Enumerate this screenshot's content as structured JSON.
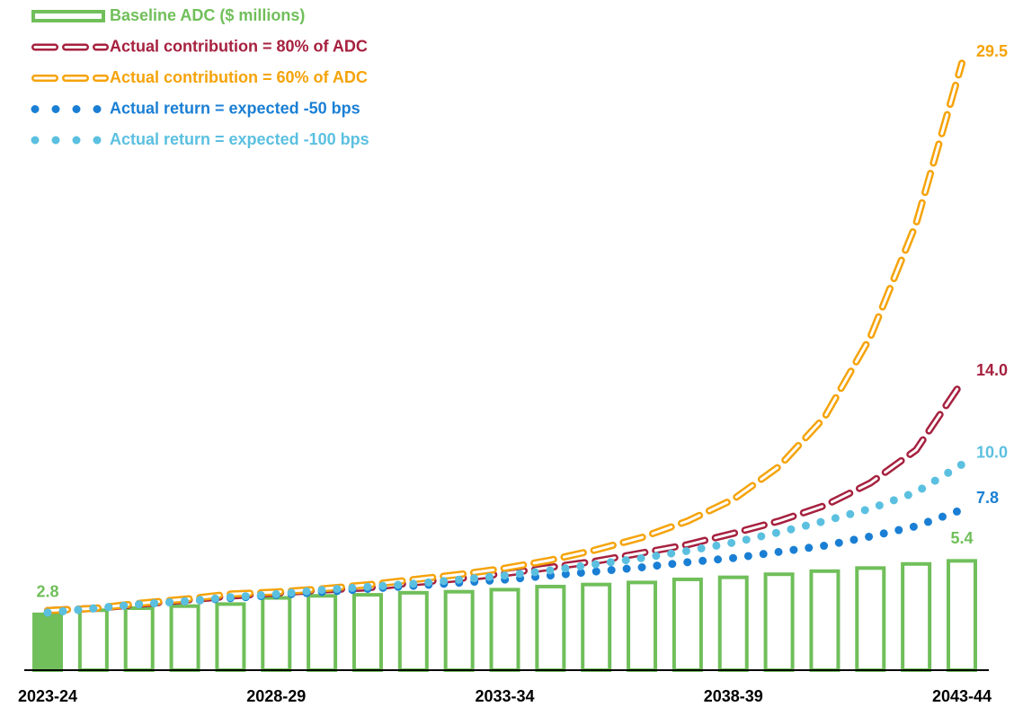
{
  "chart_data": {
    "type": "bar-line",
    "categories": [
      "2023-24",
      null,
      null,
      null,
      null,
      "2028-29",
      null,
      null,
      null,
      null,
      "2033-34",
      null,
      null,
      null,
      null,
      "2038-39",
      null,
      null,
      null,
      null,
      "2043-44"
    ],
    "ylim": [
      0,
      31
    ],
    "legend": "top-left",
    "series": [
      {
        "name": "Baseline ADC ($ millions)",
        "type": "bar",
        "color": "#70bf5a",
        "values": [
          2.8,
          3.0,
          3.1,
          3.2,
          3.3,
          3.6,
          3.7,
          3.75,
          3.85,
          3.9,
          4.0,
          4.15,
          4.25,
          4.35,
          4.5,
          4.6,
          4.75,
          4.9,
          5.05,
          5.25,
          5.4
        ],
        "value_labels": [
          "2.8",
          null,
          null,
          null,
          null,
          null,
          null,
          null,
          null,
          null,
          null,
          null,
          null,
          null,
          null,
          null,
          null,
          null,
          null,
          null,
          "5.4"
        ]
      },
      {
        "name": "Actual contribution = 80% of ADC",
        "type": "line",
        "style": "outline-dash",
        "color": "#a6213f",
        "values": [
          2.9,
          3.0,
          3.2,
          3.4,
          3.6,
          3.75,
          3.9,
          4.0,
          4.25,
          4.45,
          4.7,
          5.0,
          5.3,
          5.7,
          6.1,
          6.65,
          7.25,
          8.0,
          9.1,
          10.7,
          14.0
        ],
        "value_labels": [
          null,
          null,
          null,
          null,
          null,
          null,
          null,
          null,
          null,
          null,
          null,
          null,
          null,
          null,
          null,
          null,
          null,
          null,
          null,
          null,
          "14.0"
        ]
      },
      {
        "name": "Actual contribution = 60% of ADC",
        "type": "line",
        "style": "outline-dash",
        "color": "#f5a30a",
        "values": [
          2.9,
          3.0,
          3.25,
          3.45,
          3.7,
          3.8,
          3.95,
          4.15,
          4.4,
          4.65,
          4.95,
          5.35,
          5.85,
          6.45,
          7.25,
          8.3,
          9.9,
          12.3,
          16.2,
          21.7,
          29.5
        ],
        "value_labels": [
          null,
          null,
          null,
          null,
          null,
          null,
          null,
          null,
          null,
          null,
          null,
          null,
          null,
          null,
          null,
          null,
          null,
          null,
          null,
          null,
          "29.5"
        ]
      },
      {
        "name": "Actual return = expected -50 bps",
        "type": "line",
        "style": "dot",
        "color": "#1a7fd4",
        "values": [
          2.8,
          3.0,
          3.2,
          3.35,
          3.5,
          3.65,
          3.8,
          3.95,
          4.1,
          4.25,
          4.4,
          4.6,
          4.8,
          5.0,
          5.25,
          5.45,
          5.75,
          6.05,
          6.5,
          7.0,
          7.8
        ],
        "value_labels": [
          null,
          null,
          null,
          null,
          null,
          null,
          null,
          null,
          null,
          null,
          null,
          null,
          null,
          null,
          null,
          null,
          null,
          null,
          null,
          null,
          "7.8"
        ]
      },
      {
        "name": "Actual return = expected -100 bps",
        "type": "line",
        "style": "dot",
        "color": "#5bc0e0",
        "values": [
          2.8,
          3.0,
          3.2,
          3.35,
          3.55,
          3.7,
          3.9,
          4.05,
          4.2,
          4.4,
          4.6,
          4.85,
          5.15,
          5.45,
          5.8,
          6.2,
          6.7,
          7.25,
          7.85,
          8.65,
          10.0
        ],
        "value_labels": [
          null,
          null,
          null,
          null,
          null,
          null,
          null,
          null,
          null,
          null,
          null,
          null,
          null,
          null,
          null,
          null,
          null,
          null,
          null,
          null,
          "10.0"
        ]
      }
    ]
  }
}
